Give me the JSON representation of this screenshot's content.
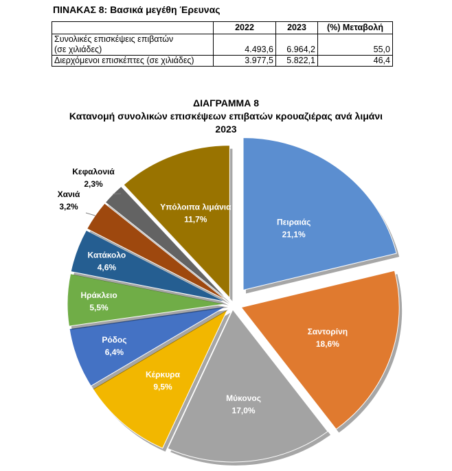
{
  "table": {
    "title": "ΠΙΝΑΚΑΣ 8: Βασικά μεγέθη Έρευνας",
    "headers": [
      "",
      "2022",
      "2023",
      "(%) Μεταβολή"
    ],
    "rows": [
      {
        "label_line1": "Συνολικές επισκέψεις επιβατών",
        "label_line2": "(σε χιλιάδες)",
        "v2022": "4.493,6",
        "v2023": "6.964,2",
        "change": "55,0"
      },
      {
        "label_line1": "Διερχόμενοι επισκέπτες  (σε χιλιάδες)",
        "label_line2": "",
        "v2022": "3.977,5",
        "v2023": "5.822,1",
        "change": "46,4"
      }
    ]
  },
  "chart_data": {
    "type": "pie",
    "title_line1": "ΔΙΑΓΡΑΜΜΑ 8",
    "title_line2": "Κατανομή συνολικών επισκέψεων επιβατών κρουαζιέρας ανά λιμάνι",
    "title_line3": "2023",
    "slices": [
      {
        "label": "Πειραιάς",
        "value": 21.1,
        "value_label": "21,1%",
        "color": "#5b8ed0"
      },
      {
        "label": "Σαντορίνη",
        "value": 18.6,
        "value_label": "18,6%",
        "color": "#e07a2f"
      },
      {
        "label": "Μύκονος",
        "value": 17.0,
        "value_label": "17,0%",
        "color": "#a3a3a3"
      },
      {
        "label": "Κέρκυρα",
        "value": 9.5,
        "value_label": "9,5%",
        "color": "#f2b700"
      },
      {
        "label": "Ρόδος",
        "value": 6.4,
        "value_label": "6,4%",
        "color": "#4472c4"
      },
      {
        "label": "Ηράκλειο",
        "value": 5.5,
        "value_label": "5,5%",
        "color": "#70ad47"
      },
      {
        "label": "Κατάκολο",
        "value": 4.6,
        "value_label": "4,6%",
        "color": "#255e91"
      },
      {
        "label": "Χανιά",
        "value": 3.2,
        "value_label": "3,2%",
        "color": "#9e480e"
      },
      {
        "label": "Κεφαλονιά",
        "value": 2.3,
        "value_label": "2,3%",
        "color": "#636363"
      },
      {
        "label": "Υπόλοιπα λιμάνια",
        "value": 11.7,
        "value_label": "11,7%",
        "color": "#997300"
      }
    ]
  }
}
